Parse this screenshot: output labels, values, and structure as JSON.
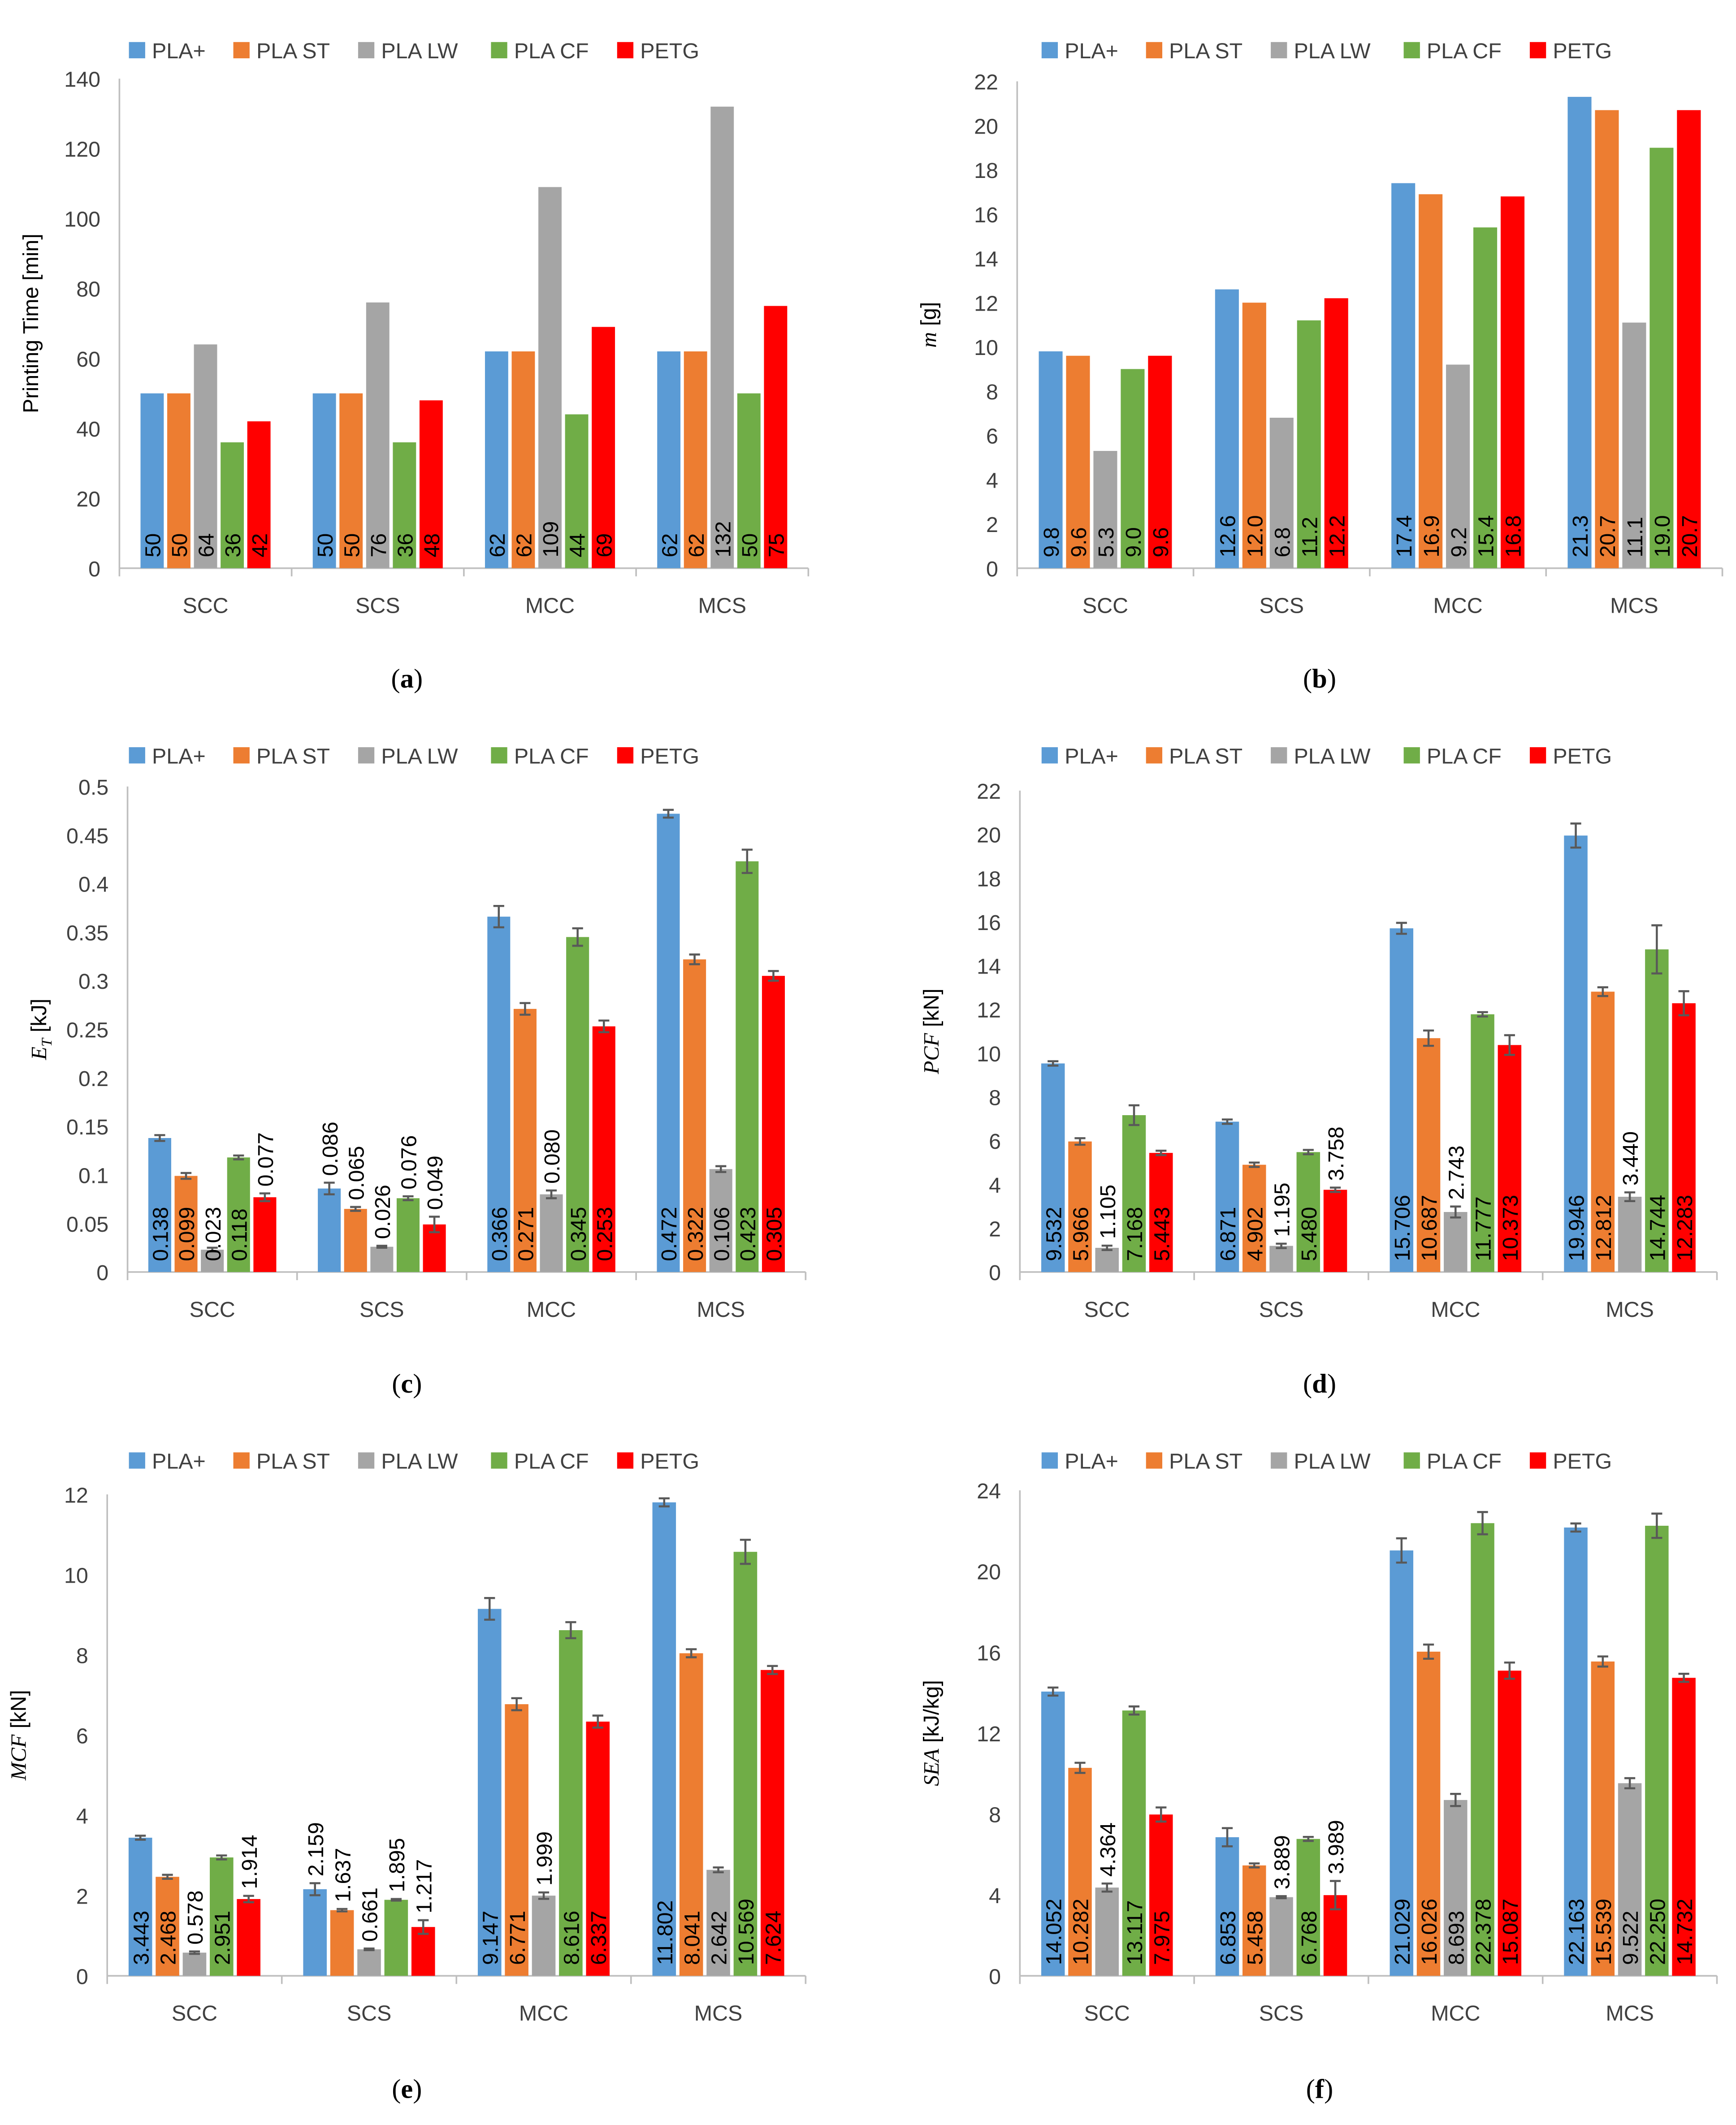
{
  "legend": [
    "PLA+",
    "PLA ST",
    "PLA LW",
    "PLA CF",
    "PETG"
  ],
  "colors": [
    "#5B9BD5",
    "#ED7D31",
    "#A5A5A5",
    "#70AD47",
    "#FF0000"
  ],
  "error_bar_color": "#595959",
  "chart_data": [
    {
      "type": "bar",
      "caption": "a",
      "ylabel": {
        "italic": "",
        "sub": "",
        "rest": "Printing Time [min]"
      },
      "categories": [
        "SCC",
        "SCS",
        "MCC",
        "MCS"
      ],
      "ylim": [
        0,
        140
      ],
      "yticks": [
        "0",
        "20",
        "40",
        "60",
        "80",
        "100",
        "120",
        "140"
      ],
      "ystep": 20,
      "decimals": 0,
      "grid": false,
      "legend_position": "top",
      "series": [
        {
          "name": "PLA+",
          "values": [
            50,
            50,
            62,
            62
          ]
        },
        {
          "name": "PLA ST",
          "values": [
            50,
            50,
            62,
            62
          ]
        },
        {
          "name": "PLA LW",
          "values": [
            64,
            76,
            109,
            132
          ]
        },
        {
          "name": "PLA CF",
          "values": [
            36,
            36,
            44,
            50
          ]
        },
        {
          "name": "PETG",
          "values": [
            42,
            48,
            69,
            75
          ]
        }
      ]
    },
    {
      "type": "bar",
      "caption": "b",
      "ylabel": {
        "italic": "m",
        "sub": "",
        "rest": " [g]"
      },
      "categories": [
        "SCC",
        "SCS",
        "MCC",
        "MCS"
      ],
      "ylim": [
        0,
        22
      ],
      "yticks": [
        "0",
        "2",
        "4",
        "6",
        "8",
        "10",
        "12",
        "14",
        "16",
        "18",
        "20",
        "22"
      ],
      "ystep": 2,
      "decimals": 1,
      "grid": false,
      "legend_position": "top",
      "series": [
        {
          "name": "PLA+",
          "values": [
            9.8,
            12.6,
            17.4,
            21.3
          ]
        },
        {
          "name": "PLA ST",
          "values": [
            9.6,
            12.0,
            16.9,
            20.7
          ]
        },
        {
          "name": "PLA LW",
          "values": [
            5.3,
            6.8,
            9.2,
            11.1
          ]
        },
        {
          "name": "PLA CF",
          "values": [
            9.0,
            11.2,
            15.4,
            19.0
          ]
        },
        {
          "name": "PETG",
          "values": [
            9.6,
            12.2,
            16.8,
            20.7
          ]
        }
      ]
    },
    {
      "type": "bar",
      "caption": "c",
      "ylabel": {
        "italic": "E",
        "sub": "T",
        "rest": " [kJ]"
      },
      "categories": [
        "SCC",
        "SCS",
        "MCC",
        "MCS"
      ],
      "ylim": [
        0,
        0.5
      ],
      "yticks": [
        "0",
        "0.05",
        "0.1",
        "0.15",
        "0.2",
        "0.25",
        "0.3",
        "0.35",
        "0.4",
        "0.45",
        "0.5"
      ],
      "ystep": 0.05,
      "decimals": 3,
      "grid": false,
      "legend_position": "top",
      "series": [
        {
          "name": "PLA+",
          "values": [
            0.138,
            0.086,
            0.366,
            0.472
          ],
          "errors": [
            0.003,
            0.006,
            0.011,
            0.004
          ]
        },
        {
          "name": "PLA ST",
          "values": [
            0.099,
            0.065,
            0.271,
            0.322
          ],
          "errors": [
            0.003,
            0.002,
            0.006,
            0.005
          ]
        },
        {
          "name": "PLA LW",
          "values": [
            0.023,
            0.026,
            0.08,
            0.106
          ],
          "errors": [
            0.002,
            0.001,
            0.004,
            0.003
          ]
        },
        {
          "name": "PLA CF",
          "values": [
            0.118,
            0.076,
            0.345,
            0.423
          ],
          "errors": [
            0.002,
            0.002,
            0.009,
            0.012
          ]
        },
        {
          "name": "PETG",
          "values": [
            0.077,
            0.049,
            0.253,
            0.305
          ],
          "errors": [
            0.004,
            0.008,
            0.006,
            0.005
          ]
        }
      ]
    },
    {
      "type": "bar",
      "caption": "d",
      "ylabel": {
        "italic": "PCF",
        "sub": "",
        "rest": " [kN]"
      },
      "categories": [
        "SCC",
        "SCS",
        "MCC",
        "MCS"
      ],
      "ylim": [
        0,
        22
      ],
      "yticks": [
        "0",
        "2",
        "4",
        "6",
        "8",
        "10",
        "12",
        "14",
        "16",
        "18",
        "20",
        "22"
      ],
      "ystep": 2,
      "decimals": 3,
      "grid": false,
      "legend_position": "top",
      "series": [
        {
          "name": "PLA+",
          "values": [
            9.532,
            6.871,
            15.706,
            19.946
          ],
          "errors": [
            0.1,
            0.1,
            0.25,
            0.55
          ]
        },
        {
          "name": "PLA ST",
          "values": [
            5.966,
            4.902,
            10.687,
            12.812
          ],
          "errors": [
            0.15,
            0.1,
            0.35,
            0.2
          ]
        },
        {
          "name": "PLA LW",
          "values": [
            1.105,
            1.195,
            2.743,
            3.44
          ],
          "errors": [
            0.1,
            0.1,
            0.25,
            0.2
          ]
        },
        {
          "name": "PLA CF",
          "values": [
            7.168,
            5.48,
            11.777,
            14.744
          ],
          "errors": [
            0.45,
            0.1,
            0.1,
            1.1
          ]
        },
        {
          "name": "PETG",
          "values": [
            5.443,
            3.758,
            10.373,
            12.283
          ],
          "errors": [
            0.1,
            0.1,
            0.45,
            0.55
          ]
        }
      ]
    },
    {
      "type": "bar",
      "caption": "e",
      "ylabel": {
        "italic": "MCF",
        "sub": "",
        "rest": " [kN]"
      },
      "categories": [
        "SCC",
        "SCS",
        "MCC",
        "MCS"
      ],
      "ylim": [
        0,
        12
      ],
      "yticks": [
        "0",
        "2",
        "4",
        "6",
        "8",
        "10",
        "12"
      ],
      "ystep": 2,
      "decimals": 3,
      "grid": false,
      "legend_position": "top",
      "series": [
        {
          "name": "PLA+",
          "values": [
            3.443,
            2.159,
            9.147,
            11.802
          ],
          "errors": [
            0.05,
            0.15,
            0.27,
            0.1
          ]
        },
        {
          "name": "PLA ST",
          "values": [
            2.468,
            1.637,
            6.771,
            8.041
          ],
          "errors": [
            0.05,
            0.03,
            0.15,
            0.1
          ]
        },
        {
          "name": "PLA LW",
          "values": [
            0.578,
            0.661,
            1.999,
            2.642
          ],
          "errors": [
            0.03,
            0.02,
            0.08,
            0.06
          ]
        },
        {
          "name": "PLA CF",
          "values": [
            2.951,
            1.895,
            8.616,
            10.569
          ],
          "errors": [
            0.05,
            0.02,
            0.2,
            0.3
          ]
        },
        {
          "name": "PETG",
          "values": [
            1.914,
            1.217,
            6.337,
            7.624
          ],
          "errors": [
            0.08,
            0.17,
            0.15,
            0.1
          ]
        }
      ]
    },
    {
      "type": "bar",
      "caption": "f",
      "ylabel": {
        "italic": "SEA",
        "sub": "",
        "rest": " [kJ/kg]"
      },
      "categories": [
        "SCC",
        "SCS",
        "MCC",
        "MCS"
      ],
      "ylim": [
        0,
        24
      ],
      "yticks": [
        "0",
        "4",
        "8",
        "12",
        "16",
        "20",
        "24"
      ],
      "ystep": 4,
      "decimals": 3,
      "grid": false,
      "legend_position": "top",
      "series": [
        {
          "name": "PLA+",
          "values": [
            14.052,
            6.853,
            21.029,
            22.163
          ],
          "errors": [
            0.2,
            0.45,
            0.6,
            0.2
          ]
        },
        {
          "name": "PLA ST",
          "values": [
            10.282,
            5.458,
            16.026,
            15.539
          ],
          "errors": [
            0.25,
            0.1,
            0.35,
            0.25
          ]
        },
        {
          "name": "PLA LW",
          "values": [
            4.364,
            3.889,
            8.693,
            9.522
          ],
          "errors": [
            0.2,
            0.05,
            0.3,
            0.25
          ]
        },
        {
          "name": "PLA CF",
          "values": [
            13.117,
            6.768,
            22.378,
            22.25
          ],
          "errors": [
            0.2,
            0.1,
            0.55,
            0.6
          ]
        },
        {
          "name": "PETG",
          "values": [
            7.975,
            3.989,
            15.087,
            14.732
          ],
          "errors": [
            0.35,
            0.7,
            0.4,
            0.2
          ]
        }
      ]
    }
  ]
}
